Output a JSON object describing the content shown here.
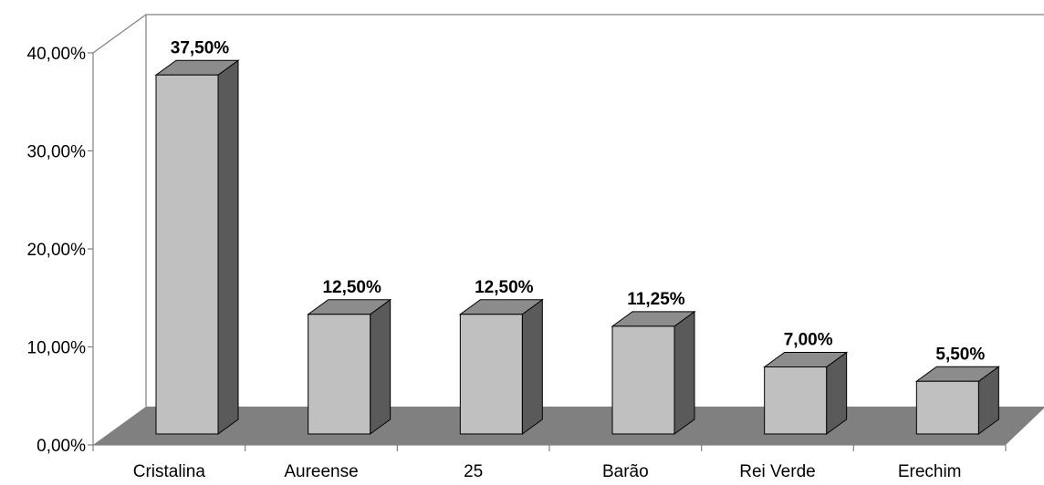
{
  "chart_data": {
    "type": "bar",
    "style": "3d-column",
    "categories": [
      "Cristalina",
      "Aureense",
      "25",
      "Barão",
      "Rei Verde",
      "Erechim"
    ],
    "values": [
      37.5,
      12.5,
      12.5,
      11.25,
      7.0,
      5.5
    ],
    "value_labels": [
      "37,50%",
      "12,50%",
      "12,50%",
      "11,25%",
      "7,00%",
      "5,50%"
    ],
    "ylim": [
      0,
      40
    ],
    "yticks": [
      0,
      10,
      20,
      30,
      40
    ],
    "ytick_labels": [
      "0,00%",
      "10,00%",
      "20,00%",
      "30,00%",
      "40,00%"
    ],
    "title": "",
    "xlabel": "",
    "ylabel": "",
    "grid": false,
    "legend": "none",
    "colors": {
      "bar_front": "#c0c0c0",
      "bar_top": "#8c8c8c",
      "bar_side": "#5a5a5a",
      "floor": "#808080",
      "walls": "#ffffff",
      "axis": "#808080"
    }
  }
}
